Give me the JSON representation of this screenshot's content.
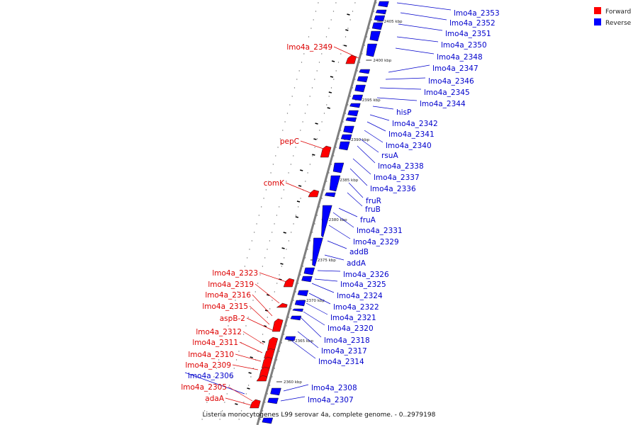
{
  "legend": {
    "items": [
      {
        "label": "Forward",
        "color": "#ff0000"
      },
      {
        "label": "Reverse",
        "color": "#0000ff"
      }
    ]
  },
  "caption": "Listeria monocytogenes L99 serovar 4a, complete genome. - 0..2979198",
  "colors": {
    "forward": "#ff0000",
    "reverse": "#0000ff",
    "backbone": "#808080",
    "label_forward": "#dd0000",
    "label_reverse": "#0000cc"
  },
  "scale": {
    "ticks_kbp": [
      2405,
      2400,
      2395,
      2390,
      2385,
      2380,
      2375,
      2370,
      2365,
      2360
    ],
    "tick_labels": [
      "2405 kbp",
      "2400 kbp",
      "2395 kbp",
      "2390 kbp",
      "2385 kbp",
      "2380 kbp",
      "2375 kbp",
      "2370 kbp",
      "2365 kbp",
      "2360 kbp"
    ]
  },
  "forward_genes": [
    "lmo4a_2349",
    "pepC",
    "comK",
    "lmo4a_2323",
    "lmo4a_2319",
    "lmo4a_2316",
    "lmo4a_2315",
    "aspB-2",
    "lmo4a_2312",
    "lmo4a_2311",
    "lmo4a_2310",
    "lmo4a_2309",
    "lmo4a_2305",
    "adaA"
  ],
  "reverse_genes": [
    "lmo4a_2353",
    "lmo4a_2352",
    "lmo4a_2351",
    "lmo4a_2350",
    "lmo4a_2348",
    "lmo4a_2347",
    "lmo4a_2346",
    "lmo4a_2345",
    "lmo4a_2344",
    "hisP",
    "lmo4a_2342",
    "lmo4a_2341",
    "lmo4a_2340",
    "rsuA",
    "lmo4a_2338",
    "lmo4a_2337",
    "lmo4a_2336",
    "fruR",
    "fruB",
    "fruA",
    "lmo4a_2331",
    "lmo4a_2329",
    "addB",
    "addA",
    "lmo4a_2326",
    "lmo4a_2325",
    "lmo4a_2324",
    "lmo4a_2322",
    "lmo4a_2321",
    "lmo4a_2320",
    "lmo4a_2318",
    "lmo4a_2317",
    "lmo4a_2314",
    "lmo4a_2306",
    "lmo4a_2308",
    "lmo4a_2307"
  ]
}
